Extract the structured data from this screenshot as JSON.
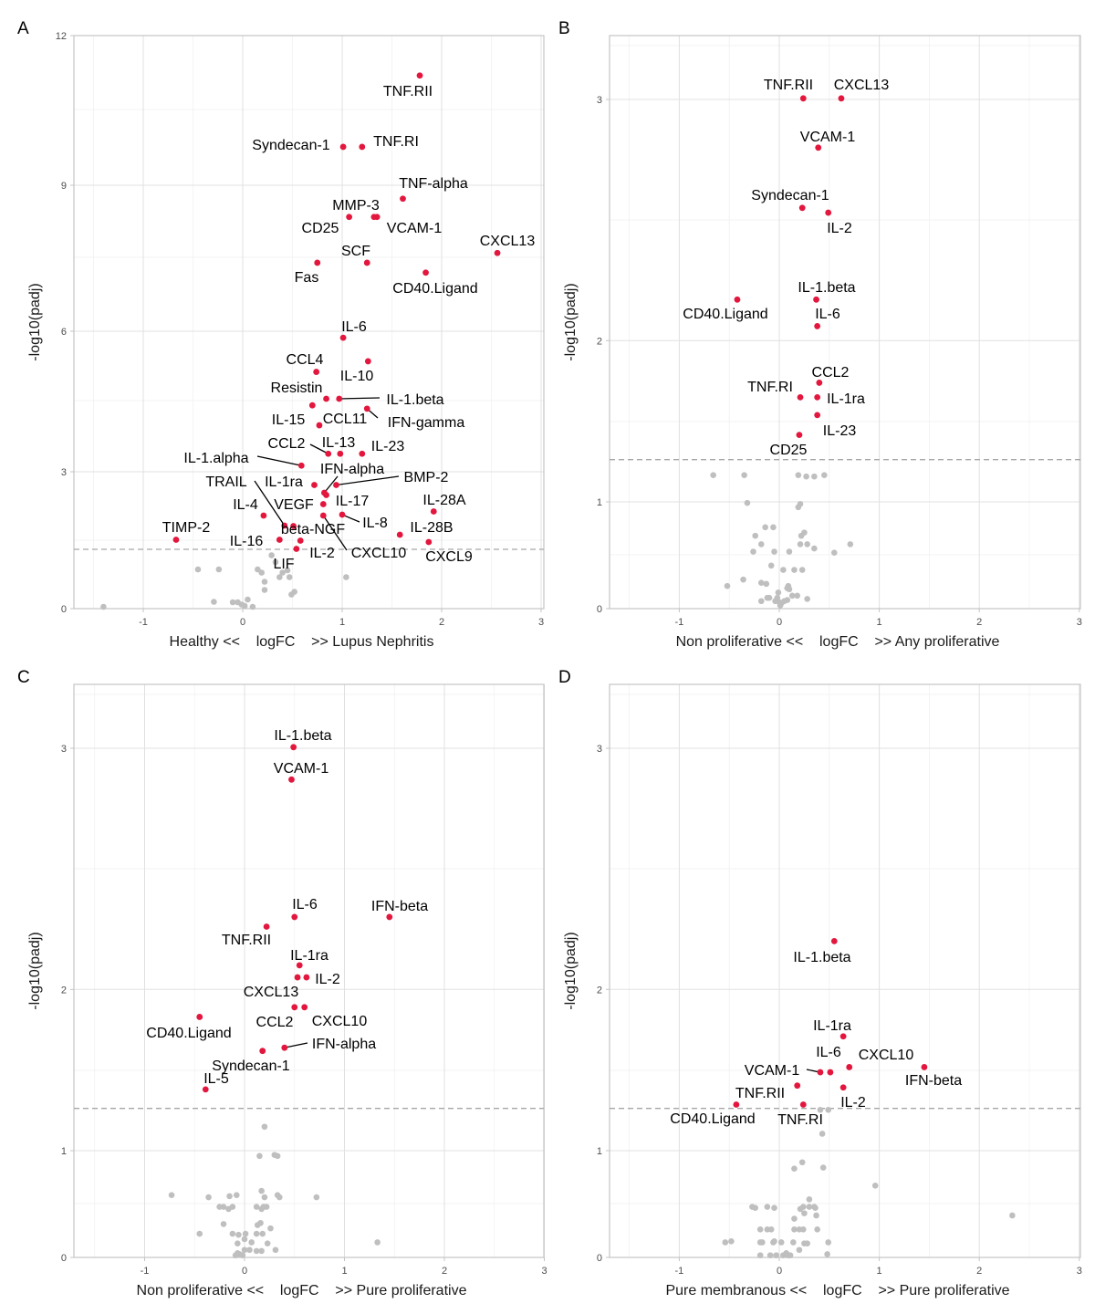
{
  "colors": {
    "significant": "#e3173e",
    "nonsignificant": "#bfbfbf",
    "threshold": "#a6a6a6",
    "grid_major": "#e0e0e0",
    "grid_minor": "#efefef",
    "border": "#c4c4c4"
  },
  "chart_data": [
    {
      "panel": "A",
      "type": "scatter",
      "xlabel": "Healthy <<    logFC    >> Lupus Nephritis",
      "ylabel": "-log10(padj)",
      "xlim": [
        -1.7,
        3
      ],
      "ylim": [
        0,
        12
      ],
      "xticks": [
        -1,
        0,
        1,
        2,
        3
      ],
      "yticks": [
        0,
        3,
        6,
        9,
        12
      ],
      "threshold": 1.3,
      "grid": true,
      "significant": [
        {
          "label": "TNF.RII",
          "x": 1.78,
          "y": 11.19
        },
        {
          "label": "Syndecan-1",
          "x": 1.01,
          "y": 9.76
        },
        {
          "label": "TNF.RI",
          "x": 1.2,
          "y": 9.76
        },
        {
          "label": "TNF-alpha",
          "x": 1.61,
          "y": 8.72
        },
        {
          "label": "CD25",
          "x": 1.07,
          "y": 8.34
        },
        {
          "label": "MMP-3",
          "x": 1.32,
          "y": 8.34
        },
        {
          "label": "VCAM-1",
          "x": 1.35,
          "y": 8.34
        },
        {
          "label": "CXCL13",
          "x": 2.56,
          "y": 7.59
        },
        {
          "label": "Fas",
          "x": 0.75,
          "y": 7.39
        },
        {
          "label": "SCF",
          "x": 1.25,
          "y": 7.39
        },
        {
          "label": "CD40.Ligand",
          "x": 1.84,
          "y": 7.19
        },
        {
          "label": "IL-6",
          "x": 1.01,
          "y": 5.86
        },
        {
          "label": "IL-10",
          "x": 1.26,
          "y": 5.35
        },
        {
          "label": "CCL4",
          "x": 0.74,
          "y": 5.12
        },
        {
          "label": "Resistin",
          "x": 0.84,
          "y": 4.54
        },
        {
          "label": "IL-1.beta",
          "x": 0.97,
          "y": 4.54
        },
        {
          "label": "IL-15",
          "x": 0.7,
          "y": 4.4
        },
        {
          "label": "IFN-gamma",
          "x": 1.25,
          "y": 4.33
        },
        {
          "label": "CCL11",
          "x": 0.77,
          "y": 3.98
        },
        {
          "label": "CCL2",
          "x": 0.86,
          "y": 3.38
        },
        {
          "label": "IL-13",
          "x": 0.98,
          "y": 3.38
        },
        {
          "label": "IL-23",
          "x": 1.2,
          "y": 3.38
        },
        {
          "label": "IL-1.alpha",
          "x": 0.59,
          "y": 3.13
        },
        {
          "label": "IL-1ra",
          "x": 0.72,
          "y": 2.71
        },
        {
          "label": "BMP-2",
          "x": 0.94,
          "y": 2.71
        },
        {
          "label": "IFN-alpha",
          "x": 0.82,
          "y": 2.54
        },
        {
          "label": "IL-17",
          "x": 0.84,
          "y": 2.49
        },
        {
          "label": "VEGF",
          "x": 0.81,
          "y": 2.29
        },
        {
          "label": "IL-28A",
          "x": 1.92,
          "y": 2.13
        },
        {
          "label": "IL-4",
          "x": 0.21,
          "y": 2.04
        },
        {
          "label": "CXCL10",
          "x": 0.81,
          "y": 2.04
        },
        {
          "label": "IL-8",
          "x": 1.0,
          "y": 2.06
        },
        {
          "label": "TRAIL",
          "x": 0.42,
          "y": 1.82
        },
        {
          "label": "beta-NGF",
          "x": 0.51,
          "y": 1.81
        },
        {
          "label": "IL-28B",
          "x": 1.58,
          "y": 1.62
        },
        {
          "label": "TIMP-2",
          "x": -0.67,
          "y": 1.51
        },
        {
          "label": "IL-16",
          "x": 0.37,
          "y": 1.51
        },
        {
          "label": "IL-2",
          "x": 0.58,
          "y": 1.49
        },
        {
          "label": "CXCL9",
          "x": 1.87,
          "y": 1.46
        },
        {
          "label": "LIF",
          "x": 0.54,
          "y": 1.31
        }
      ],
      "nonsignificant": [
        [
          -1.4,
          0.04
        ],
        [
          -0.45,
          0.86
        ],
        [
          -0.24,
          0.86
        ],
        [
          -0.29,
          0.15
        ],
        [
          -0.1,
          0.14
        ],
        [
          -0.05,
          0.14
        ],
        [
          -0.01,
          0.09
        ],
        [
          0.02,
          0.06
        ],
        [
          0.05,
          0.2
        ],
        [
          0.1,
          0.04
        ],
        [
          0.15,
          0.86
        ],
        [
          0.19,
          0.79
        ],
        [
          0.22,
          0.59
        ],
        [
          0.22,
          0.41
        ],
        [
          0.29,
          1.17
        ],
        [
          0.33,
          1.02
        ],
        [
          0.37,
          0.69
        ],
        [
          0.4,
          0.79
        ],
        [
          0.45,
          0.84
        ],
        [
          0.47,
          0.69
        ],
        [
          0.49,
          0.31
        ],
        [
          0.52,
          0.37
        ],
        [
          1.04,
          0.69
        ]
      ]
    },
    {
      "panel": "B",
      "type": "scatter",
      "xlabel": "Non proliferative <<    logFC    >> Any proliferative",
      "ylabel": "-log10(padj)",
      "xlim": [
        -1.7,
        3
      ],
      "ylim": [
        0,
        3.6
      ],
      "xticks": [
        -1,
        0,
        1,
        2,
        3
      ],
      "yticks": [
        0,
        1,
        2,
        3
      ],
      "threshold": 1.3,
      "grid": true,
      "significant": [
        {
          "label": "TNF.RII",
          "x": 0.24,
          "y": 3.01
        },
        {
          "label": "CXCL13",
          "x": 0.62,
          "y": 3.01
        },
        {
          "label": "VCAM-1",
          "x": 0.39,
          "y": 2.8
        },
        {
          "label": "Syndecan-1",
          "x": 0.23,
          "y": 2.55
        },
        {
          "label": "IL-2",
          "x": 0.49,
          "y": 2.53
        },
        {
          "label": "IL-1.beta",
          "x": 0.37,
          "y": 2.17
        },
        {
          "label": "CD40.Ligand",
          "x": -0.42,
          "y": 2.17
        },
        {
          "label": "IL-6",
          "x": 0.38,
          "y": 2.06
        },
        {
          "label": "CCL2",
          "x": 0.4,
          "y": 1.74
        },
        {
          "label": "TNF.RI",
          "x": 0.21,
          "y": 1.65
        },
        {
          "label": "IL-1ra",
          "x": 0.38,
          "y": 1.65
        },
        {
          "label": "IL-23",
          "x": 0.38,
          "y": 1.54
        },
        {
          "label": "CD25",
          "x": 0.2,
          "y": 1.43
        }
      ],
      "nonsignificant": [
        [
          -0.66,
          1.19
        ],
        [
          -0.35,
          1.19
        ],
        [
          0.19,
          1.19
        ],
        [
          0.27,
          1.18
        ],
        [
          0.35,
          1.18
        ],
        [
          0.45,
          1.19
        ],
        [
          -0.32,
          0.99
        ],
        [
          0.21,
          0.98
        ],
        [
          0.19,
          0.95
        ],
        [
          -0.14,
          0.76
        ],
        [
          -0.06,
          0.76
        ],
        [
          -0.24,
          0.68
        ],
        [
          0.25,
          0.71
        ],
        [
          0.22,
          0.68
        ],
        [
          -0.18,
          0.6
        ],
        [
          0.21,
          0.6
        ],
        [
          0.28,
          0.6
        ],
        [
          0.35,
          0.56
        ],
        [
          0.71,
          0.6
        ],
        [
          -0.26,
          0.53
        ],
        [
          -0.05,
          0.53
        ],
        [
          0.1,
          0.53
        ],
        [
          0.55,
          0.52
        ],
        [
          -0.08,
          0.4
        ],
        [
          0.04,
          0.36
        ],
        [
          0.15,
          0.36
        ],
        [
          0.23,
          0.36
        ],
        [
          -0.36,
          0.27
        ],
        [
          -0.52,
          0.21
        ],
        [
          -0.18,
          0.24
        ],
        [
          -0.13,
          0.23
        ],
        [
          0.09,
          0.21
        ],
        [
          0.1,
          0.18
        ],
        [
          0.08,
          0.19
        ],
        [
          -0.01,
          0.15
        ],
        [
          -0.1,
          0.1
        ],
        [
          -0.12,
          0.1
        ],
        [
          -0.18,
          0.07
        ],
        [
          0.13,
          0.12
        ],
        [
          0.18,
          0.12
        ],
        [
          0.28,
          0.09
        ],
        [
          -0.04,
          0.07
        ],
        [
          0.0,
          0.06
        ],
        [
          0.02,
          0.05
        ],
        [
          0.05,
          0.07
        ],
        [
          0.08,
          0.08
        ],
        [
          -0.02,
          0.1
        ],
        [
          0.01,
          0.03
        ]
      ]
    },
    {
      "panel": "C",
      "type": "scatter",
      "xlabel": "Non proliferative <<    logFC    >> Pure proliferative",
      "ylabel": "-log10(padj)",
      "xlim": [
        -1.7,
        3
      ],
      "ylim": [
        0,
        3.6
      ],
      "xticks": [
        -1,
        0,
        1,
        2,
        3
      ],
      "yticks": [
        0,
        1,
        2,
        3
      ],
      "threshold": 1.3,
      "grid": true,
      "significant": [
        {
          "label": "IL-1.beta",
          "x": 0.49,
          "y": 3.01
        },
        {
          "label": "VCAM-1",
          "x": 0.47,
          "y": 2.87
        },
        {
          "label": "IL-6",
          "x": 0.5,
          "y": 2.3
        },
        {
          "label": "IFN-beta",
          "x": 1.45,
          "y": 2.3
        },
        {
          "label": "TNF.RII",
          "x": 0.22,
          "y": 2.26
        },
        {
          "label": "IL-1ra",
          "x": 0.55,
          "y": 2.1
        },
        {
          "label": "IL-2",
          "x": 0.62,
          "y": 2.05
        },
        {
          "label": "CXCL13",
          "x": 0.53,
          "y": 2.05
        },
        {
          "label": "CCL2",
          "x": 0.5,
          "y": 1.89
        },
        {
          "label": "CXCL10",
          "x": 0.6,
          "y": 1.89
        },
        {
          "label": "CD40.Ligand",
          "x": -0.45,
          "y": 1.83
        },
        {
          "label": "IFN-alpha",
          "x": 0.4,
          "y": 1.64
        },
        {
          "label": "Syndecan-1",
          "x": 0.18,
          "y": 1.62
        },
        {
          "label": "IL-5",
          "x": -0.39,
          "y": 1.4
        }
      ],
      "nonsignificant": [
        [
          0.2,
          1.17
        ],
        [
          0.15,
          0.95
        ],
        [
          0.3,
          0.96
        ],
        [
          0.33,
          0.95
        ],
        [
          -0.73,
          0.58
        ],
        [
          -0.36,
          0.56
        ],
        [
          -0.15,
          0.57
        ],
        [
          -0.08,
          0.58
        ],
        [
          0.17,
          0.62
        ],
        [
          0.2,
          0.56
        ],
        [
          0.33,
          0.58
        ],
        [
          0.35,
          0.56
        ],
        [
          0.72,
          0.56
        ],
        [
          -0.25,
          0.47
        ],
        [
          -0.21,
          0.47
        ],
        [
          -0.16,
          0.45
        ],
        [
          -0.12,
          0.47
        ],
        [
          0.12,
          0.47
        ],
        [
          0.17,
          0.45
        ],
        [
          0.22,
          0.47
        ],
        [
          0.19,
          0.47
        ],
        [
          0.16,
          0.32
        ],
        [
          0.13,
          0.3
        ],
        [
          -0.21,
          0.31
        ],
        [
          0.26,
          0.27
        ],
        [
          -0.45,
          0.22
        ],
        [
          -0.12,
          0.22
        ],
        [
          -0.06,
          0.21
        ],
        [
          0.01,
          0.22
        ],
        [
          0.12,
          0.22
        ],
        [
          0.18,
          0.22
        ],
        [
          0.0,
          0.17
        ],
        [
          -0.07,
          0.13
        ],
        [
          0.07,
          0.14
        ],
        [
          0.23,
          0.13
        ],
        [
          0.0,
          0.07
        ],
        [
          0.05,
          0.07
        ],
        [
          0.12,
          0.06
        ],
        [
          0.17,
          0.06
        ],
        [
          0.31,
          0.07
        ],
        [
          1.33,
          0.14
        ],
        [
          -0.07,
          0.04
        ],
        [
          -0.05,
          0.03
        ],
        [
          -0.09,
          0.02
        ],
        [
          -0.02,
          0.02
        ]
      ]
    },
    {
      "panel": "D",
      "type": "scatter",
      "xlabel": "Pure membranous <<    logFC    >> Pure proliferative",
      "ylabel": "-log10(padj)",
      "xlim": [
        -1.7,
        3
      ],
      "ylim": [
        0,
        3.6
      ],
      "xticks": [
        -1,
        0,
        1,
        2,
        3
      ],
      "yticks": [
        0,
        1,
        2,
        3
      ],
      "threshold": 1.3,
      "grid": true,
      "significant": [
        {
          "label": "IL-1.beta",
          "x": 0.55,
          "y": 2.2
        },
        {
          "label": "IL-1ra",
          "x": 0.64,
          "y": 1.71
        },
        {
          "label": "CXCL10",
          "x": 0.7,
          "y": 1.52
        },
        {
          "label": "IFN-beta",
          "x": 1.45,
          "y": 1.52
        },
        {
          "label": "VCAM-1",
          "x": 0.41,
          "y": 1.49
        },
        {
          "label": "IL-6",
          "x": 0.51,
          "y": 1.49
        },
        {
          "label": "TNF.RII",
          "x": 0.18,
          "y": 1.42
        },
        {
          "label": "IL-2",
          "x": 0.64,
          "y": 1.41
        },
        {
          "label": "CD40.Ligand",
          "x": -0.43,
          "y": 1.32
        },
        {
          "label": "TNF.RI",
          "x": 0.24,
          "y": 1.32
        }
      ],
      "nonsignificant": [
        [
          0.41,
          1.29
        ],
        [
          0.49,
          1.29
        ],
        [
          0.43,
          1.12
        ],
        [
          0.23,
          0.89
        ],
        [
          0.15,
          0.83
        ],
        [
          0.44,
          0.84
        ],
        [
          0.96,
          0.67
        ],
        [
          0.3,
          0.54
        ],
        [
          -0.27,
          0.47
        ],
        [
          -0.24,
          0.46
        ],
        [
          -0.12,
          0.47
        ],
        [
          -0.05,
          0.46
        ],
        [
          0.21,
          0.45
        ],
        [
          0.24,
          0.47
        ],
        [
          0.3,
          0.47
        ],
        [
          0.35,
          0.47
        ],
        [
          0.36,
          0.46
        ],
        [
          0.25,
          0.41
        ],
        [
          0.37,
          0.39
        ],
        [
          0.15,
          0.36
        ],
        [
          2.33,
          0.39
        ],
        [
          -0.19,
          0.26
        ],
        [
          -0.12,
          0.26
        ],
        [
          -0.08,
          0.26
        ],
        [
          0.15,
          0.26
        ],
        [
          0.2,
          0.26
        ],
        [
          0.24,
          0.26
        ],
        [
          0.38,
          0.26
        ],
        [
          -0.54,
          0.14
        ],
        [
          -0.48,
          0.15
        ],
        [
          -0.19,
          0.14
        ],
        [
          -0.17,
          0.14
        ],
        [
          -0.06,
          0.14
        ],
        [
          -0.05,
          0.15
        ],
        [
          0.02,
          0.14
        ],
        [
          0.14,
          0.14
        ],
        [
          0.25,
          0.13
        ],
        [
          0.28,
          0.13
        ],
        [
          0.49,
          0.14
        ],
        [
          0.2,
          0.07
        ],
        [
          -0.19,
          0.02
        ],
        [
          -0.09,
          0.02
        ],
        [
          -0.03,
          0.02
        ],
        [
          0.04,
          0.02
        ],
        [
          0.07,
          0.04
        ],
        [
          0.09,
          0.02
        ],
        [
          0.11,
          0.02
        ],
        [
          0.48,
          0.03
        ]
      ]
    }
  ]
}
